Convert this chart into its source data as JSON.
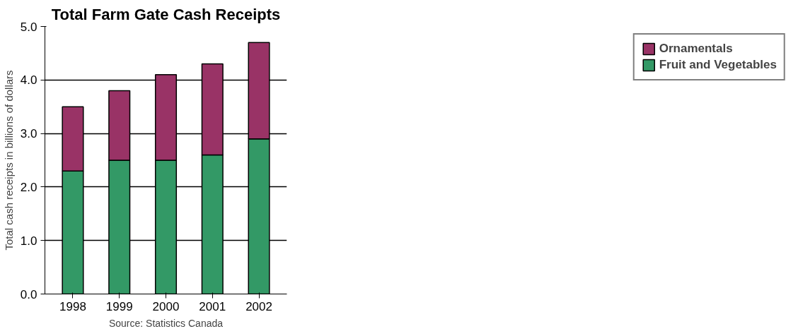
{
  "chart_data": {
    "type": "bar",
    "title": "Total Farm Gate Cash Receipts",
    "ylabel": "Total cash receipts in billions of dollars",
    "categories": [
      "1998",
      "1999",
      "2000",
      "2001",
      "2002"
    ],
    "stacked": true,
    "series": [
      {
        "name": "Fruit and Vegetables",
        "color": "#339966",
        "values": [
          2.3,
          2.5,
          2.5,
          2.6,
          2.9
        ]
      },
      {
        "name": "Ornamentals",
        "color": "#993366",
        "values": [
          1.2,
          1.3,
          1.6,
          1.7,
          1.8
        ]
      }
    ],
    "ylim": [
      0,
      5
    ],
    "yticks": [
      {
        "value": 0,
        "label": "0.0"
      },
      {
        "value": 1,
        "label": "1.0"
      },
      {
        "value": 2,
        "label": "2.0"
      },
      {
        "value": 3,
        "label": "3.0"
      },
      {
        "value": 4,
        "label": "4.0"
      },
      {
        "value": 5,
        "label": "5.0"
      }
    ],
    "grid": "y",
    "legend": "right",
    "annotations": [
      "Source: Statistics Canada"
    ]
  }
}
